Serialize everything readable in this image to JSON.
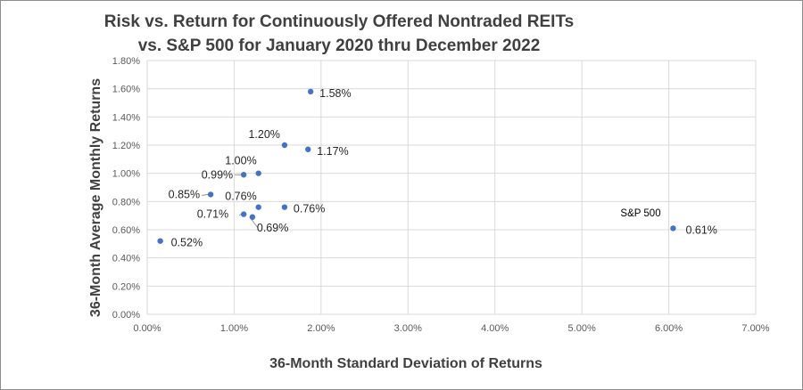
{
  "chart_data": {
    "type": "scatter",
    "title": "Risk vs. Return for Continuously Offered Nontraded REITs",
    "subtitle": "vs. S&P 500 for January 2020 thru December 2022",
    "xlabel": "36-Month Standard Deviation of Returns",
    "ylabel": "36-Month Average Monthly Returns",
    "xlim": [
      0,
      7
    ],
    "ylim": [
      0,
      1.8
    ],
    "x_ticks": [
      "0.00%",
      "1.00%",
      "2.00%",
      "3.00%",
      "4.00%",
      "5.00%",
      "6.00%",
      "7.00%"
    ],
    "y_ticks": [
      "0.00%",
      "0.20%",
      "0.40%",
      "0.60%",
      "0.80%",
      "1.00%",
      "1.20%",
      "1.40%",
      "1.60%",
      "1.80%"
    ],
    "grid": "vertical-and-horizontal",
    "marker_color": "#4472C4",
    "points": [
      {
        "x": 1.88,
        "y": 1.58,
        "label": "1.58%"
      },
      {
        "x": 1.58,
        "y": 1.2,
        "label": "1.20%"
      },
      {
        "x": 1.85,
        "y": 1.17,
        "label": "1.17%"
      },
      {
        "x": 1.28,
        "y": 1.0,
        "label": "1.00%"
      },
      {
        "x": 1.11,
        "y": 0.99,
        "label": "0.99%"
      },
      {
        "x": 0.73,
        "y": 0.85,
        "label": "0.85%"
      },
      {
        "x": 1.28,
        "y": 0.76,
        "label": "0.76%"
      },
      {
        "x": 1.58,
        "y": 0.76,
        "label": "0.76%"
      },
      {
        "x": 1.11,
        "y": 0.71,
        "label": "0.71%"
      },
      {
        "x": 1.21,
        "y": 0.69,
        "label": "0.69%"
      },
      {
        "x": 0.15,
        "y": 0.52,
        "label": "0.52%"
      },
      {
        "x": 6.05,
        "y": 0.61,
        "label": "0.61%"
      }
    ],
    "annotations": [
      {
        "text": "S&P 500"
      }
    ]
  }
}
